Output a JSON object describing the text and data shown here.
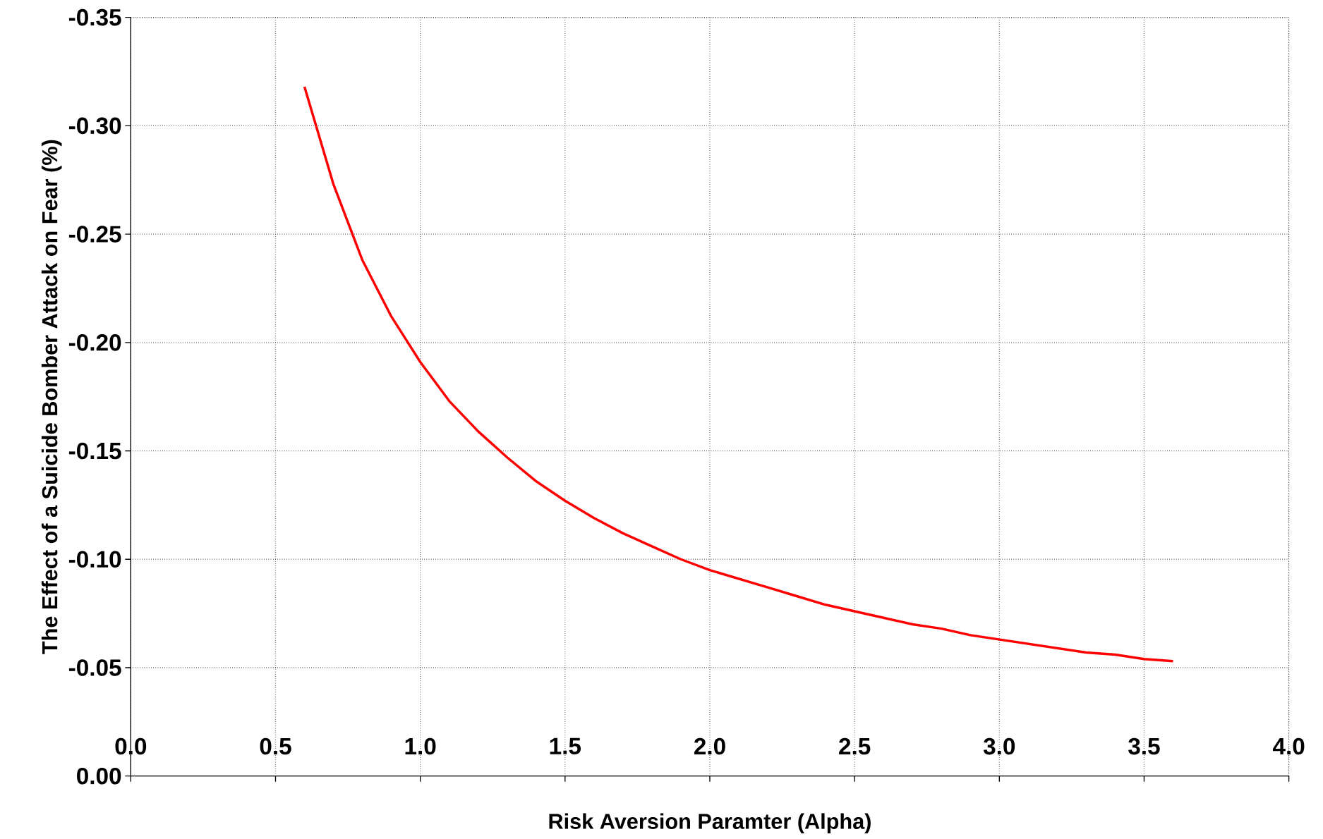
{
  "chart_data": {
    "type": "line",
    "xlabel": "Risk Aversion Paramter (Alpha)",
    "ylabel": "The Effect of a Suicide Bomber Attack on Fear (%)",
    "x": [
      0.6,
      0.7,
      0.8,
      0.9,
      1.0,
      1.1,
      1.2,
      1.3,
      1.4,
      1.5,
      1.6,
      1.7,
      1.8,
      1.9,
      2.0,
      2.1,
      2.2,
      2.3,
      2.4,
      2.5,
      2.6,
      2.7,
      2.8,
      2.9,
      3.0,
      3.1,
      3.2,
      3.3,
      3.4,
      3.5,
      3.6
    ],
    "series": [
      {
        "color": "#ff0000",
        "values": [
          -0.318,
          -0.273,
          -0.238,
          -0.212,
          -0.191,
          -0.173,
          -0.159,
          -0.147,
          -0.136,
          -0.127,
          -0.119,
          -0.112,
          -0.106,
          -0.1,
          -0.095,
          -0.091,
          -0.087,
          -0.083,
          -0.079,
          -0.076,
          -0.073,
          -0.07,
          -0.068,
          -0.065,
          -0.063,
          -0.061,
          -0.059,
          -0.057,
          -0.056,
          -0.054,
          -0.053
        ]
      }
    ],
    "xlim": [
      0,
      4
    ],
    "ylim": [
      0,
      -0.35
    ],
    "xticks": [
      {
        "value": 0,
        "label": "0.0"
      },
      {
        "value": 0.5,
        "label": "0.5"
      },
      {
        "value": 1,
        "label": "1.0"
      },
      {
        "value": 1.5,
        "label": "1.5"
      },
      {
        "value": 2,
        "label": "2.0"
      },
      {
        "value": 2.5,
        "label": "2.5"
      },
      {
        "value": 3,
        "label": "3.0"
      },
      {
        "value": 3.5,
        "label": "3.5"
      },
      {
        "value": 4,
        "label": "4.0"
      }
    ],
    "yticks": [
      {
        "value": 0,
        "label": "0.00"
      },
      {
        "value": -0.05,
        "label": "-0.05"
      },
      {
        "value": -0.1,
        "label": "-0.10"
      },
      {
        "value": -0.15,
        "label": "-0.15"
      },
      {
        "value": -0.2,
        "label": "-0.20"
      },
      {
        "value": -0.25,
        "label": "-0.25"
      },
      {
        "value": -0.3,
        "label": "-0.30"
      },
      {
        "value": -0.35,
        "label": "-0.35"
      }
    ],
    "grid": true,
    "marker": "none",
    "line_style": "solid"
  }
}
